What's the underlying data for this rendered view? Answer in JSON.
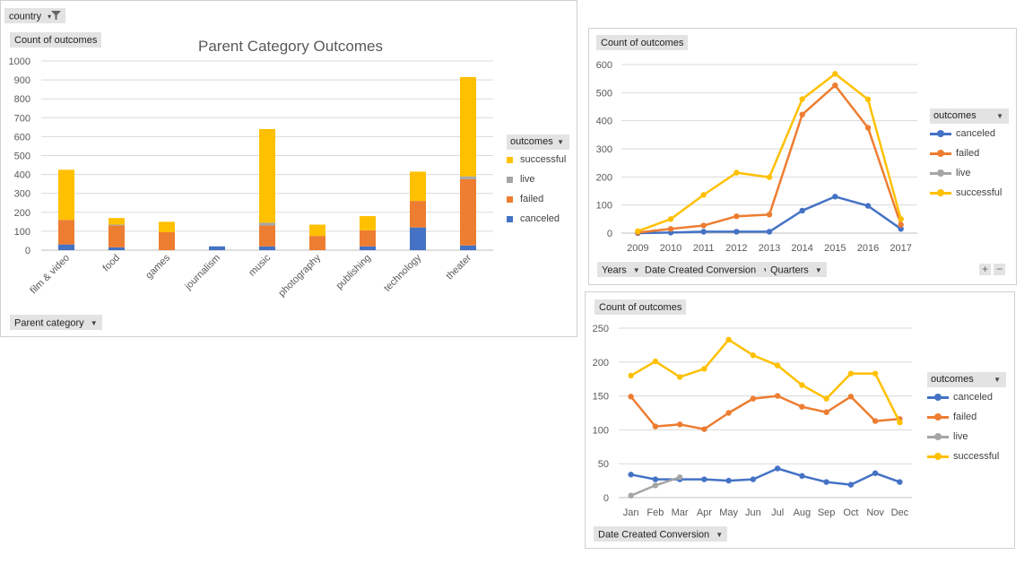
{
  "colors": {
    "canceled": "#4472C4",
    "failed": "#ED7D31",
    "live": "#A5A5A5",
    "successful": "#FFC000",
    "grid": "#d9d9d9",
    "axis": "#595959"
  },
  "filter_button": {
    "label": "country",
    "icon": "filter-icon"
  },
  "chart1": {
    "value_button": "Count of outcomes",
    "axis_button": "Parent category",
    "legend_title": "outcomes",
    "legend": [
      "successful",
      "live",
      "failed",
      "canceled"
    ],
    "chart_data": {
      "type": "bar",
      "stacked": true,
      "title": "Parent Category Outcomes",
      "categories": [
        "film & video",
        "food",
        "games",
        "journalism",
        "music",
        "photography",
        "publishing",
        "technology",
        "theater"
      ],
      "series": [
        {
          "name": "canceled",
          "values": [
            30,
            15,
            0,
            20,
            20,
            0,
            20,
            120,
            25
          ]
        },
        {
          "name": "failed",
          "values": [
            130,
            115,
            95,
            0,
            110,
            75,
            85,
            140,
            350
          ]
        },
        {
          "name": "live",
          "values": [
            0,
            5,
            0,
            0,
            15,
            0,
            0,
            0,
            15
          ]
        },
        {
          "name": "successful",
          "values": [
            265,
            35,
            55,
            0,
            495,
            60,
            75,
            155,
            525
          ]
        }
      ],
      "ylim": [
        0,
        1000
      ],
      "yticks": [
        "0",
        "100",
        "200",
        "300",
        "400",
        "500",
        "600",
        "700",
        "800",
        "900",
        "1000"
      ],
      "grid": true,
      "legend_position": "right"
    }
  },
  "chart2": {
    "value_button": "Count of outcomes",
    "axis_buttons": [
      "Years",
      "Date Created Conversion",
      "Quarters"
    ],
    "legend_title": "outcomes",
    "legend": [
      "canceled",
      "failed",
      "live",
      "successful"
    ],
    "zoom": [
      "+",
      "−"
    ],
    "chart_data": {
      "type": "line",
      "categories": [
        "2009",
        "2010",
        "2011",
        "2012",
        "2013",
        "2014",
        "2015",
        "2016",
        "2017"
      ],
      "series": [
        {
          "name": "canceled",
          "values": [
            0,
            2,
            5,
            5,
            5,
            80,
            130,
            97,
            15
          ]
        },
        {
          "name": "failed",
          "values": [
            2,
            15,
            27,
            60,
            66,
            422,
            526,
            375,
            30
          ]
        },
        {
          "name": "live",
          "values": [
            null,
            null,
            null,
            null,
            null,
            null,
            null,
            null,
            50
          ]
        },
        {
          "name": "successful",
          "values": [
            7,
            50,
            136,
            215,
            199,
            477,
            567,
            476,
            50
          ]
        }
      ],
      "ylim": [
        0,
        600
      ],
      "yticks": [
        "0",
        "100",
        "200",
        "300",
        "400",
        "500",
        "600"
      ],
      "grid": true,
      "legend_position": "right"
    }
  },
  "chart3": {
    "value_button": "Count of outcomes",
    "axis_button": "Date Created Conversion",
    "legend_title": "outcomes",
    "legend": [
      "canceled",
      "failed",
      "live",
      "successful"
    ],
    "chart_data": {
      "type": "line",
      "categories": [
        "Jan",
        "Feb",
        "Mar",
        "Apr",
        "May",
        "Jun",
        "Jul",
        "Aug",
        "Sep",
        "Oct",
        "Nov",
        "Dec"
      ],
      "series": [
        {
          "name": "canceled",
          "values": [
            34,
            27,
            27,
            27,
            25,
            27,
            43,
            32,
            23,
            19,
            36,
            23
          ]
        },
        {
          "name": "failed",
          "values": [
            149,
            105,
            108,
            101,
            125,
            146,
            150,
            134,
            126,
            149,
            113,
            116
          ]
        },
        {
          "name": "live",
          "values": [
            3,
            18,
            30,
            null,
            null,
            null,
            null,
            null,
            null,
            null,
            null,
            null
          ]
        },
        {
          "name": "successful",
          "values": [
            180,
            201,
            178,
            190,
            233,
            210,
            195,
            166,
            146,
            183,
            183,
            111
          ]
        }
      ],
      "ylim": [
        0,
        250
      ],
      "yticks": [
        "0",
        "50",
        "100",
        "150",
        "200",
        "250"
      ],
      "grid": true,
      "legend_position": "right"
    }
  }
}
